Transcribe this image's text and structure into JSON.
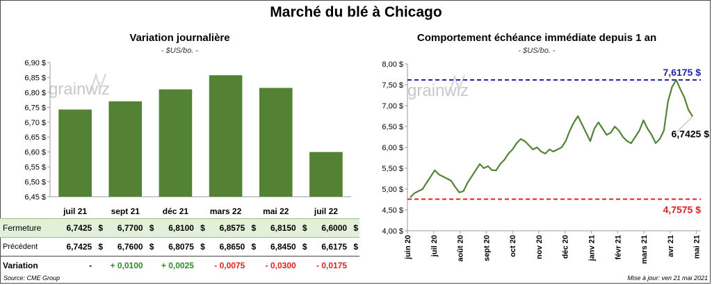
{
  "title": "Marché du blé à Chicago",
  "left_panel": {
    "title": "Variation journalière",
    "unit": "- $US/bo. -"
  },
  "right_panel": {
    "title": "Comportement échéance immédiate depuis 1 an",
    "unit": "- $US/bo. -"
  },
  "watermark": "grainwiz",
  "table": {
    "currency": "$",
    "rows": {
      "close": {
        "label": "Fermeture",
        "values": [
          "6,7425",
          "6,7700",
          "6,8100",
          "6,8575",
          "6,8150",
          "6,6000"
        ]
      },
      "prev": {
        "label": "Précédent",
        "values": [
          "6,7425",
          "6,7600",
          "6,8075",
          "6,8650",
          "6,8450",
          "6,6175"
        ]
      },
      "var": {
        "label": "Variation",
        "values": [
          "-",
          "+ 0,0100",
          "+ 0,0025",
          "- 0,0075",
          "- 0,0300",
          "- 0,0175"
        ]
      }
    }
  },
  "footer": {
    "source": "Source: CME Group",
    "updated": "Mise à jour: ven 21 mai 2021"
  },
  "colors": {
    "bar": "#548235",
    "line": "#548235",
    "high": "#1f1fa8",
    "low": "#e0211b",
    "close_row_bg": "#e2efd9",
    "positive": "#2e8b25",
    "negative": "#e0211b"
  },
  "chart_data": [
    {
      "type": "bar",
      "title": "Variation journalière",
      "categories": [
        "juil 21",
        "sept 21",
        "déc 21",
        "mars 22",
        "mai 22",
        "juil 22"
      ],
      "values": [
        6.7425,
        6.77,
        6.81,
        6.8575,
        6.815,
        6.6
      ],
      "ylim": [
        6.45,
        6.9
      ],
      "yticks": [
        "6,45 $",
        "6,50 $",
        "6,55 $",
        "6,60 $",
        "6,65 $",
        "6,70 $",
        "6,75 $",
        "6,80 $",
        "6,85 $",
        "6,90 $"
      ],
      "grid": false
    },
    {
      "type": "line",
      "title": "Comportement échéance immédiate depuis 1 an",
      "ylim": [
        4.0,
        8.0
      ],
      "yticks": [
        "4,00 $",
        "4,50 $",
        "5,00 $",
        "5,50 $",
        "6,00 $",
        "6,50 $",
        "7,00 $",
        "7,50 $",
        "8,00 $"
      ],
      "xticks": [
        "juin 20",
        "juil 20",
        "août 20",
        "sept 20",
        "oct 20",
        "nov 20",
        "déc 20",
        "janv 21",
        "févr 21",
        "mars 21",
        "avr 21",
        "mai 21"
      ],
      "series": [
        {
          "values": [
            4.8,
            4.9,
            4.95,
            5.0,
            5.15,
            5.3,
            5.45,
            5.35,
            5.3,
            5.25,
            5.2,
            5.05,
            4.92,
            4.95,
            5.15,
            5.3,
            5.45,
            5.6,
            5.5,
            5.55,
            5.45,
            5.45,
            5.6,
            5.7,
            5.85,
            5.95,
            6.1,
            6.2,
            6.15,
            6.05,
            5.95,
            6.0,
            5.9,
            5.85,
            5.95,
            5.9,
            5.95,
            6.0,
            6.15,
            6.4,
            6.6,
            6.75,
            6.55,
            6.35,
            6.15,
            6.45,
            6.6,
            6.45,
            6.3,
            6.35,
            6.5,
            6.4,
            6.25,
            6.15,
            6.1,
            6.25,
            6.4,
            6.65,
            6.45,
            6.3,
            6.1,
            6.2,
            6.4,
            7.1,
            7.45,
            7.6175,
            7.4,
            7.2,
            6.9,
            6.7425
          ]
        }
      ],
      "annotations": [
        {
          "label": "7,6175 $",
          "value": 7.6175,
          "kind": "high"
        },
        {
          "label": "4,7575 $",
          "value": 4.7575,
          "kind": "low"
        },
        {
          "label": "6,7425 $",
          "value": 6.7425,
          "kind": "last"
        }
      ],
      "grid": false
    }
  ]
}
